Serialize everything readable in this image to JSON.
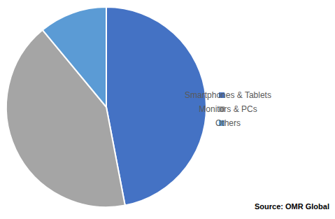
{
  "chart_data": {
    "type": "pie",
    "categories": [
      "Smartphones & Tablets",
      "Monitors & PCs",
      "Others"
    ],
    "values": [
      47,
      42,
      11
    ],
    "colors": [
      "#4472c4",
      "#a5a5a5",
      "#5b9bd5"
    ],
    "legend": "right",
    "annotations": [
      "Source: OMR Global"
    ]
  }
}
